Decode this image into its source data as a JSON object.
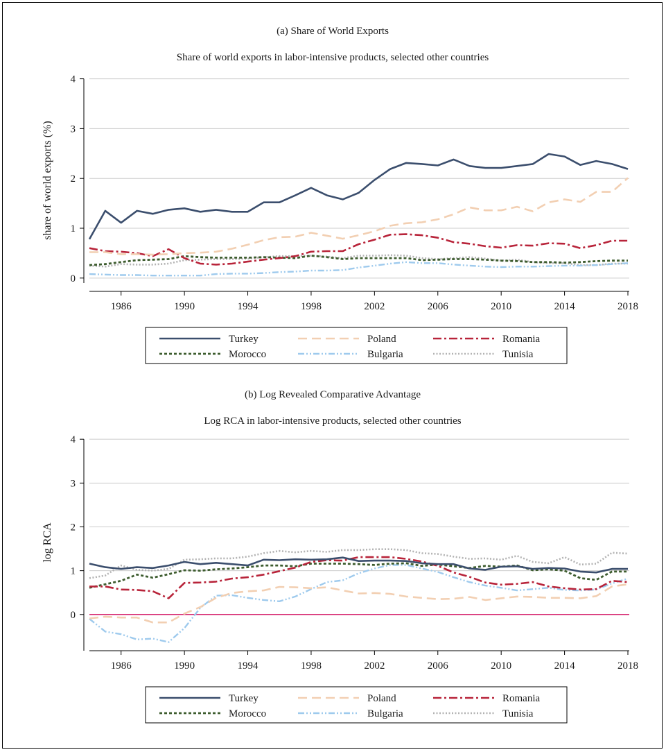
{
  "chart_data": [
    {
      "type": "line",
      "panel_label": "(a)  Share of World Exports",
      "title": "Share of world exports in labor-intensive products, selected other countries",
      "xlabel": "",
      "ylabel": "share of world exports (%)",
      "xlim": [
        1984,
        2018
      ],
      "ylim": [
        0,
        4
      ],
      "xticks": [
        1986,
        1990,
        1994,
        1998,
        2002,
        2006,
        2010,
        2014,
        2018
      ],
      "yticks": [
        0,
        1,
        2,
        3,
        4
      ],
      "grid": true,
      "legend": "bottom",
      "x": [
        1984,
        1985,
        1986,
        1987,
        1988,
        1989,
        1990,
        1991,
        1992,
        1993,
        1994,
        1995,
        1996,
        1997,
        1998,
        1999,
        2000,
        2001,
        2002,
        2003,
        2004,
        2005,
        2006,
        2007,
        2008,
        2009,
        2010,
        2011,
        2012,
        2013,
        2014,
        2015,
        2016,
        2017,
        2018
      ],
      "series": [
        {
          "name": "Turkey",
          "color": "#3b4e6d",
          "style": "solid",
          "values": [
            0.78,
            1.35,
            1.11,
            1.35,
            1.29,
            1.37,
            1.4,
            1.33,
            1.37,
            1.33,
            1.33,
            1.52,
            1.52,
            1.66,
            1.81,
            1.66,
            1.58,
            1.71,
            1.97,
            2.19,
            2.31,
            2.29,
            2.26,
            2.38,
            2.25,
            2.21,
            2.21,
            2.25,
            2.29,
            2.49,
            2.44,
            2.27,
            2.35,
            2.29,
            2.19
          ]
        },
        {
          "name": "Poland",
          "color": "#f2cfb2",
          "style": "dash",
          "values": [
            0.52,
            0.52,
            0.48,
            0.48,
            0.47,
            0.48,
            0.5,
            0.51,
            0.53,
            0.59,
            0.67,
            0.76,
            0.82,
            0.83,
            0.91,
            0.85,
            0.79,
            0.86,
            0.94,
            1.05,
            1.1,
            1.12,
            1.18,
            1.28,
            1.42,
            1.36,
            1.36,
            1.43,
            1.34,
            1.52,
            1.58,
            1.53,
            1.73,
            1.73,
            2.01
          ]
        },
        {
          "name": "Romania",
          "color": "#b8243a",
          "style": "dashdot",
          "values": [
            0.6,
            0.54,
            0.53,
            0.5,
            0.44,
            0.58,
            0.4,
            0.29,
            0.27,
            0.29,
            0.33,
            0.37,
            0.4,
            0.44,
            0.53,
            0.54,
            0.54,
            0.68,
            0.77,
            0.87,
            0.88,
            0.86,
            0.81,
            0.72,
            0.69,
            0.64,
            0.61,
            0.66,
            0.65,
            0.7,
            0.69,
            0.6,
            0.66,
            0.75,
            0.75
          ]
        },
        {
          "name": "Morocco",
          "color": "#3d5c2e",
          "style": "dotdash",
          "values": [
            0.26,
            0.28,
            0.32,
            0.36,
            0.37,
            0.38,
            0.44,
            0.42,
            0.41,
            0.41,
            0.41,
            0.42,
            0.41,
            0.4,
            0.45,
            0.42,
            0.38,
            0.4,
            0.4,
            0.4,
            0.4,
            0.36,
            0.37,
            0.38,
            0.38,
            0.37,
            0.35,
            0.34,
            0.32,
            0.32,
            0.31,
            0.32,
            0.34,
            0.35,
            0.35
          ]
        },
        {
          "name": "Bulgaria",
          "color": "#9ecaed",
          "style": "dashdotdot",
          "values": [
            0.08,
            0.07,
            0.06,
            0.06,
            0.05,
            0.05,
            0.05,
            0.05,
            0.08,
            0.09,
            0.09,
            0.1,
            0.12,
            0.13,
            0.15,
            0.15,
            0.16,
            0.21,
            0.25,
            0.29,
            0.32,
            0.3,
            0.3,
            0.27,
            0.25,
            0.23,
            0.22,
            0.23,
            0.23,
            0.24,
            0.25,
            0.25,
            0.26,
            0.28,
            0.3
          ]
        },
        {
          "name": "Tunisia",
          "color": "#b3b3b3",
          "style": "dot",
          "values": [
            0.25,
            0.23,
            0.28,
            0.27,
            0.27,
            0.29,
            0.36,
            0.37,
            0.38,
            0.38,
            0.39,
            0.42,
            0.44,
            0.44,
            0.45,
            0.43,
            0.4,
            0.45,
            0.45,
            0.46,
            0.45,
            0.4,
            0.38,
            0.4,
            0.42,
            0.39,
            0.35,
            0.37,
            0.32,
            0.3,
            0.3,
            0.26,
            0.26,
            0.29,
            0.29
          ]
        }
      ]
    },
    {
      "type": "line",
      "panel_label": "(b)  Log Revealed Comparative Advantage",
      "title": "Log RCA in labor-intensive products, selected other countries",
      "xlabel": "",
      "ylabel": "log  RCA",
      "xlim": [
        1984,
        2018
      ],
      "ylim": [
        -0.7,
        4
      ],
      "xticks": [
        1986,
        1990,
        1994,
        1998,
        2002,
        2006,
        2010,
        2014,
        2018
      ],
      "yticks": [
        0,
        1,
        2,
        3,
        4
      ],
      "grid": true,
      "reference_line": {
        "y": 0,
        "color": "#d6246e"
      },
      "legend": "bottom",
      "x": [
        1984,
        1985,
        1986,
        1987,
        1988,
        1989,
        1990,
        1991,
        1992,
        1993,
        1994,
        1995,
        1996,
        1997,
        1998,
        1999,
        2000,
        2001,
        2002,
        2003,
        2004,
        2005,
        2006,
        2007,
        2008,
        2009,
        2010,
        2011,
        2012,
        2013,
        2014,
        2015,
        2016,
        2017,
        2018
      ],
      "series": [
        {
          "name": "Turkey",
          "color": "#3b4e6d",
          "style": "solid",
          "values": [
            1.16,
            1.08,
            1.04,
            1.08,
            1.06,
            1.12,
            1.2,
            1.15,
            1.18,
            1.15,
            1.12,
            1.25,
            1.24,
            1.26,
            1.25,
            1.26,
            1.3,
            1.22,
            1.23,
            1.23,
            1.22,
            1.17,
            1.15,
            1.15,
            1.05,
            1.02,
            1.09,
            1.1,
            1.04,
            1.06,
            1.05,
            0.98,
            0.96,
            1.04,
            1.04
          ]
        },
        {
          "name": "Poland",
          "color": "#f2cfb2",
          "style": "dash",
          "values": [
            -0.09,
            -0.05,
            -0.07,
            -0.07,
            -0.18,
            -0.18,
            0.02,
            0.17,
            0.38,
            0.49,
            0.53,
            0.55,
            0.63,
            0.62,
            0.6,
            0.62,
            0.55,
            0.48,
            0.49,
            0.47,
            0.41,
            0.38,
            0.35,
            0.36,
            0.4,
            0.33,
            0.37,
            0.41,
            0.4,
            0.38,
            0.38,
            0.37,
            0.42,
            0.64,
            0.69
          ]
        },
        {
          "name": "Romania",
          "color": "#b8243a",
          "style": "dashdot",
          "values": [
            0.64,
            0.64,
            0.57,
            0.56,
            0.53,
            0.37,
            0.72,
            0.73,
            0.75,
            0.82,
            0.85,
            0.91,
            0.99,
            1.07,
            1.2,
            1.24,
            1.23,
            1.31,
            1.31,
            1.31,
            1.27,
            1.21,
            1.11,
            0.96,
            0.86,
            0.73,
            0.68,
            0.7,
            0.74,
            0.64,
            0.6,
            0.57,
            0.58,
            0.77,
            0.74
          ]
        },
        {
          "name": "Morocco",
          "color": "#3d5c2e",
          "style": "dotdash",
          "values": [
            0.61,
            0.69,
            0.77,
            0.91,
            0.84,
            0.92,
            1.01,
            1.0,
            1.03,
            1.05,
            1.08,
            1.12,
            1.12,
            1.1,
            1.16,
            1.16,
            1.16,
            1.15,
            1.13,
            1.16,
            1.17,
            1.11,
            1.14,
            1.1,
            1.06,
            1.11,
            1.09,
            1.12,
            1.01,
            1.03,
            1.0,
            0.83,
            0.79,
            0.98,
            0.98
          ]
        },
        {
          "name": "Bulgaria",
          "color": "#9ecaed",
          "style": "dashdotdot",
          "values": [
            -0.1,
            -0.39,
            -0.45,
            -0.57,
            -0.55,
            -0.63,
            -0.31,
            0.15,
            0.43,
            0.44,
            0.38,
            0.33,
            0.3,
            0.41,
            0.58,
            0.74,
            0.78,
            0.94,
            1.05,
            1.13,
            1.13,
            1.05,
            0.97,
            0.85,
            0.74,
            0.66,
            0.61,
            0.55,
            0.58,
            0.61,
            0.56,
            0.55,
            0.57,
            0.71,
            0.82
          ]
        },
        {
          "name": "Tunisia",
          "color": "#b3b3b3",
          "style": "dot",
          "values": [
            0.83,
            0.89,
            1.12,
            1.02,
            1.0,
            1.04,
            1.25,
            1.26,
            1.28,
            1.28,
            1.32,
            1.4,
            1.45,
            1.42,
            1.45,
            1.43,
            1.47,
            1.47,
            1.49,
            1.49,
            1.47,
            1.4,
            1.38,
            1.32,
            1.27,
            1.28,
            1.25,
            1.34,
            1.2,
            1.17,
            1.31,
            1.14,
            1.16,
            1.41,
            1.39
          ]
        }
      ]
    }
  ]
}
